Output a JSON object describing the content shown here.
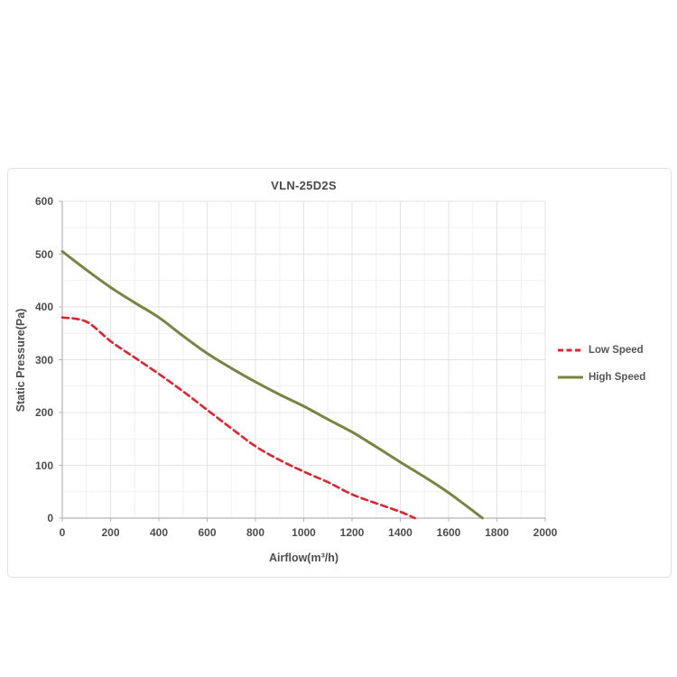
{
  "page": {
    "background": "#ffffff",
    "panel_border": "#e0e0e0"
  },
  "chart_data": {
    "type": "line",
    "title": "VLN-25D2S",
    "xlabel": "Airflow(m³/h)",
    "ylabel": "Static Pressure(Pa)",
    "xlim": [
      0,
      2000
    ],
    "ylim": [
      0,
      600
    ],
    "x_ticks": [
      0,
      200,
      400,
      600,
      800,
      1000,
      1200,
      1400,
      1600,
      1800,
      2000
    ],
    "y_ticks": [
      0,
      100,
      200,
      300,
      400,
      500,
      600
    ],
    "x_minor_step": 100,
    "y_minor_step": 50,
    "grid": true,
    "grid_minor_color": "#f0f0f0",
    "grid_major_color": "#e3e3e3",
    "axis_color": "#b5b5b5",
    "legend_position": "right-outside",
    "series": [
      {
        "name": "Low Speed",
        "color": "#e3222f",
        "style": "dashed",
        "points": [
          [
            0,
            380
          ],
          [
            100,
            372
          ],
          [
            200,
            335
          ],
          [
            300,
            304
          ],
          [
            400,
            273
          ],
          [
            500,
            240
          ],
          [
            600,
            205
          ],
          [
            700,
            170
          ],
          [
            800,
            136
          ],
          [
            900,
            110
          ],
          [
            1000,
            88
          ],
          [
            1100,
            68
          ],
          [
            1200,
            45
          ],
          [
            1300,
            28
          ],
          [
            1400,
            12
          ],
          [
            1460,
            0
          ]
        ]
      },
      {
        "name": "High Speed",
        "color": "#778442",
        "style": "solid",
        "points": [
          [
            0,
            505
          ],
          [
            100,
            470
          ],
          [
            200,
            437
          ],
          [
            300,
            408
          ],
          [
            400,
            380
          ],
          [
            500,
            345
          ],
          [
            600,
            312
          ],
          [
            700,
            284
          ],
          [
            800,
            258
          ],
          [
            900,
            234
          ],
          [
            1000,
            212
          ],
          [
            1100,
            187
          ],
          [
            1200,
            163
          ],
          [
            1300,
            135
          ],
          [
            1400,
            106
          ],
          [
            1500,
            78
          ],
          [
            1600,
            48
          ],
          [
            1700,
            14
          ],
          [
            1740,
            0
          ]
        ]
      }
    ]
  }
}
